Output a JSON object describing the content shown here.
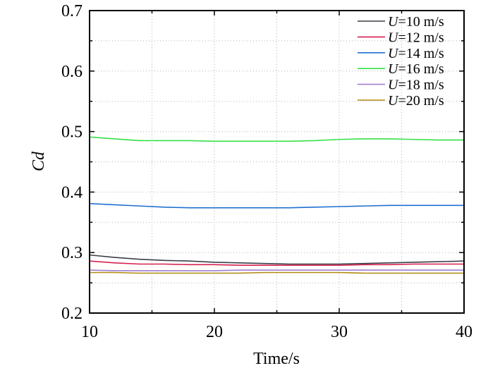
{
  "chart_data": {
    "type": "line",
    "xlabel": "Time/s",
    "ylabel": "Cd",
    "xlim": [
      10,
      40
    ],
    "ylim": [
      0.2,
      0.7
    ],
    "x_ticks": [
      10,
      20,
      30,
      40
    ],
    "y_ticks": [
      0.2,
      0.3,
      0.4,
      0.5,
      0.6,
      0.7
    ],
    "y_tick_labels": [
      "0.2",
      "0.3",
      "0.4",
      "0.5",
      "0.6",
      "0.7"
    ],
    "x_tick_labels": [
      "10",
      "20",
      "30",
      "40"
    ],
    "grid": true,
    "legend_position": "top-right",
    "x": [
      10,
      12,
      14,
      16,
      18,
      20,
      22,
      24,
      26,
      28,
      30,
      32,
      34,
      36,
      38,
      40
    ],
    "series": [
      {
        "name_var": "U",
        "name_rest": "=10 m/s",
        "color": "#3a3f48",
        "values": [
          0.296,
          0.292,
          0.289,
          0.287,
          0.286,
          0.284,
          0.283,
          0.282,
          0.281,
          0.281,
          0.281,
          0.282,
          0.283,
          0.284,
          0.285,
          0.286
        ]
      },
      {
        "name_var": "U",
        "name_rest": "=12 m/s",
        "color": "#d6204e",
        "values": [
          0.286,
          0.283,
          0.281,
          0.281,
          0.28,
          0.28,
          0.279,
          0.279,
          0.279,
          0.279,
          0.279,
          0.28,
          0.28,
          0.281,
          0.281,
          0.281
        ]
      },
      {
        "name_var": "U",
        "name_rest": "=14 m/s",
        "color": "#1f6fd1",
        "values": [
          0.381,
          0.379,
          0.377,
          0.375,
          0.374,
          0.374,
          0.374,
          0.374,
          0.374,
          0.375,
          0.376,
          0.377,
          0.378,
          0.378,
          0.378,
          0.378
        ]
      },
      {
        "name_var": "U",
        "name_rest": "=16 m/s",
        "color": "#35e04a",
        "values": [
          0.491,
          0.488,
          0.485,
          0.485,
          0.485,
          0.484,
          0.484,
          0.484,
          0.484,
          0.485,
          0.487,
          0.488,
          0.488,
          0.487,
          0.486,
          0.486
        ]
      },
      {
        "name_var": "U",
        "name_rest": "=18 m/s",
        "color": "#a07fcf",
        "values": [
          0.271,
          0.27,
          0.27,
          0.27,
          0.27,
          0.27,
          0.271,
          0.271,
          0.271,
          0.271,
          0.271,
          0.271,
          0.271,
          0.271,
          0.271,
          0.271
        ]
      },
      {
        "name_var": "U",
        "name_rest": "=20 m/s",
        "color": "#b08a10",
        "values": [
          0.267,
          0.267,
          0.266,
          0.266,
          0.266,
          0.266,
          0.266,
          0.267,
          0.267,
          0.267,
          0.267,
          0.266,
          0.266,
          0.266,
          0.266,
          0.266
        ]
      }
    ]
  }
}
